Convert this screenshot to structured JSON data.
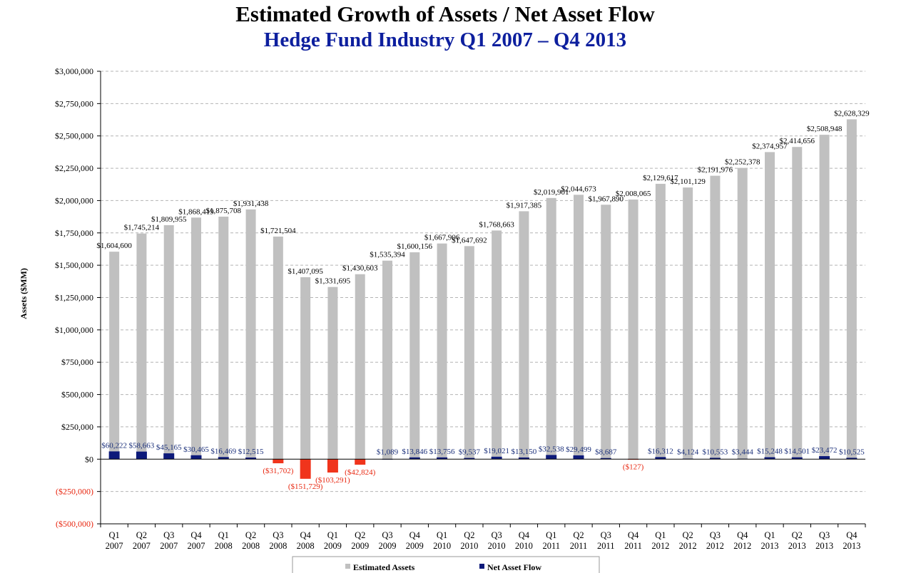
{
  "chart_data": {
    "type": "bar",
    "title": "Estimated Growth of Assets / Net Asset Flow",
    "subtitle": "Hedge Fund Industry Q1 2007 – Q4 2013",
    "ylabel": "Assets ($MM)",
    "xlabel": "",
    "ylim": [
      -500000,
      3000000
    ],
    "yticks": [
      {
        "value": 3000000,
        "label": "$3,000,000"
      },
      {
        "value": 2750000,
        "label": "$2,750,000"
      },
      {
        "value": 2500000,
        "label": "$2,500,000"
      },
      {
        "value": 2250000,
        "label": "$2,250,000"
      },
      {
        "value": 2000000,
        "label": "$2,000,000"
      },
      {
        "value": 1750000,
        "label": "$1,750,000"
      },
      {
        "value": 1500000,
        "label": "$1,500,000"
      },
      {
        "value": 1250000,
        "label": "$1,250,000"
      },
      {
        "value": 1000000,
        "label": "$1,000,000"
      },
      {
        "value": 750000,
        "label": "$750,000"
      },
      {
        "value": 500000,
        "label": "$500,000"
      },
      {
        "value": 250000,
        "label": "$250,000"
      },
      {
        "value": 0,
        "label": "$0"
      },
      {
        "value": -250000,
        "label": "($250,000)"
      },
      {
        "value": -500000,
        "label": "($500,000)"
      }
    ],
    "grid": true,
    "legend_position": "bottom",
    "colors": {
      "assets": "#c0c0c0",
      "flow_positive": "#0d1a7a",
      "flow_negative": "#f0341c",
      "negative_label": "#e8260f",
      "grid": "#b4b4b4"
    },
    "categories": [
      [
        "Q1",
        "2007"
      ],
      [
        "Q2",
        "2007"
      ],
      [
        "Q3",
        "2007"
      ],
      [
        "Q4",
        "2007"
      ],
      [
        "Q1",
        "2008"
      ],
      [
        "Q2",
        "2008"
      ],
      [
        "Q3",
        "2008"
      ],
      [
        "Q4",
        "2008"
      ],
      [
        "Q1",
        "2009"
      ],
      [
        "Q2",
        "2009"
      ],
      [
        "Q3",
        "2009"
      ],
      [
        "Q4",
        "2009"
      ],
      [
        "Q1",
        "2010"
      ],
      [
        "Q2",
        "2010"
      ],
      [
        "Q3",
        "2010"
      ],
      [
        "Q4",
        "2010"
      ],
      [
        "Q1",
        "2011"
      ],
      [
        "Q2",
        "2011"
      ],
      [
        "Q3",
        "2011"
      ],
      [
        "Q4",
        "2011"
      ],
      [
        "Q1",
        "2012"
      ],
      [
        "Q2",
        "2012"
      ],
      [
        "Q3",
        "2012"
      ],
      [
        "Q4",
        "2012"
      ],
      [
        "Q1",
        "2013"
      ],
      [
        "Q2",
        "2013"
      ],
      [
        "Q3",
        "2013"
      ],
      [
        "Q4",
        "2013"
      ]
    ],
    "series": [
      {
        "name": "Estimated Assets",
        "values": [
          1604600,
          1745214,
          1809955,
          1868419,
          1875708,
          1931438,
          1721504,
          1407095,
          1331695,
          1430603,
          1535394,
          1600156,
          1667906,
          1647692,
          1768663,
          1917385,
          2019901,
          2044673,
          1967890,
          2008065,
          2129617,
          2101129,
          2191976,
          2252378,
          2374957,
          2414656,
          2508948,
          2628329
        ],
        "labels": [
          "$1,604,600",
          "$1,745,214",
          "$1,809,955",
          "$1,868,419",
          "$1,875,708",
          "$1,931,438",
          "$1,721,504",
          "$1,407,095",
          "$1,331,695",
          "$1,430,603",
          "$1,535,394",
          "$1,600,156",
          "$1,667,906",
          "$1,647,692",
          "$1,768,663",
          "$1,917,385",
          "$2,019,901",
          "$2,044,673",
          "$1,967,890",
          "$2,008,065",
          "$2,129,617",
          "$2,101,129",
          "$2,191,976",
          "$2,252,378",
          "$2,374,957",
          "$2,414,656",
          "$2,508,948",
          "$2,628,329"
        ]
      },
      {
        "name": "Net Asset Flow",
        "values": [
          60222,
          58663,
          45165,
          30465,
          16469,
          12515,
          -31702,
          -151729,
          -103291,
          -42824,
          1089,
          13846,
          13756,
          9537,
          19021,
          13150,
          32538,
          29499,
          8687,
          -127,
          16312,
          4124,
          10553,
          3444,
          15248,
          14501,
          23472,
          10525
        ],
        "labels": [
          "$60,222",
          "$58,663",
          "$45,165",
          "$30,465",
          "$16,469",
          "$12,515",
          "($31,702)",
          "($151,729)",
          "($103,291)",
          "($42,824)",
          "$1,089",
          "$13,846",
          "$13,756",
          "$9,537",
          "$19,021",
          "$13,150",
          "$32,538",
          "$29,499",
          "$8,687",
          "($127)",
          "$16,312",
          "$4,124",
          "$10,553",
          "$3,444",
          "$15,248",
          "$14,501",
          "$23,472",
          "$10,525"
        ]
      }
    ]
  }
}
